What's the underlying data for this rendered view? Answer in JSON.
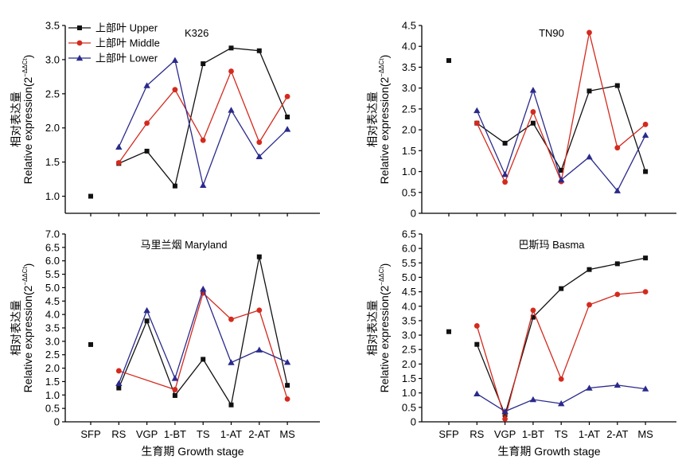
{
  "colors": {
    "upper": "#111111",
    "middle": "#d42a1e",
    "lower": "#2a2a8c",
    "axis": "#000000"
  },
  "legend": {
    "items": [
      {
        "key": "upper",
        "label": "上部叶 Upper",
        "marker": "square"
      },
      {
        "key": "middle",
        "label": "上部叶 Middle",
        "marker": "circle"
      },
      {
        "key": "lower",
        "label": "上部叶 Lower",
        "marker": "triangle"
      }
    ]
  },
  "chart_data": [
    {
      "type": "line",
      "title": "K326",
      "categories": [
        "SFP",
        "RS",
        "VGP",
        "1-BT",
        "TS",
        "1-AT",
        "2-AT",
        "MS"
      ],
      "ylabel_cn": "相对表达量",
      "ylabel_en": "Relative expression(2",
      "ylabel_sup": "−ΔΔCt",
      "ylabel_close": ")",
      "ylim": [
        0.75,
        3.5
      ],
      "yticks": [
        "1.0",
        "1.5",
        "2.0",
        "2.5",
        "3.0",
        "3.5"
      ],
      "show_x_labels": false,
      "series": [
        {
          "key": "upper",
          "values": [
            1.0,
            1.48,
            1.66,
            1.15,
            2.94,
            3.17,
            3.13,
            2.16
          ]
        },
        {
          "key": "middle",
          "values": [
            null,
            1.49,
            2.07,
            2.56,
            1.82,
            2.83,
            1.79,
            2.46
          ]
        },
        {
          "key": "lower",
          "values": [
            null,
            1.72,
            2.62,
            2.99,
            1.16,
            2.26,
            1.58,
            1.98
          ]
        }
      ]
    },
    {
      "type": "line",
      "title": "TN90",
      "categories": [
        "SFP",
        "RS",
        "VGP",
        "1-BT",
        "TS",
        "1-AT",
        "2-AT",
        "MS"
      ],
      "ylabel_cn": "相对表达量",
      "ylabel_en": "Relative expression(2",
      "ylabel_sup": "−ΔΔCt",
      "ylabel_close": ")",
      "ylim": [
        0,
        4.5
      ],
      "yticks": [
        "0",
        "0.5",
        "1.0",
        "1.5",
        "2.0",
        "2.5",
        "3.0",
        "3.5",
        "4.0",
        "4.5"
      ],
      "show_x_labels": false,
      "series": [
        {
          "key": "upper",
          "values": [
            3.66,
            2.16,
            1.68,
            2.16,
            1.03,
            2.93,
            3.06,
            1.0
          ]
        },
        {
          "key": "middle",
          "values": [
            null,
            2.16,
            0.75,
            2.43,
            0.76,
            4.33,
            1.57,
            2.13
          ]
        },
        {
          "key": "lower",
          "values": [
            null,
            2.46,
            0.93,
            2.95,
            0.8,
            1.35,
            0.54,
            1.87
          ]
        }
      ]
    },
    {
      "type": "line",
      "title": "马里兰烟 Maryland",
      "categories": [
        "SFP",
        "RS",
        "VGP",
        "1-BT",
        "TS",
        "1-AT",
        "2-AT",
        "MS"
      ],
      "ylabel_cn": "相对表达量",
      "ylabel_en": "Relative expression(2",
      "ylabel_sup": "−ΔΔCt",
      "ylabel_close": ")",
      "ylim": [
        0,
        7.0
      ],
      "yticks": [
        "0",
        "0.5",
        "1.0",
        "1.5",
        "2.0",
        "2.5",
        "3.0",
        "3.5",
        "4.0",
        "4.5",
        "5.0",
        "5.5",
        "6.0",
        "6.5",
        "7.0"
      ],
      "show_x_labels": true,
      "xlabel": "生育期 Growth stage",
      "series": [
        {
          "key": "upper",
          "values": [
            2.88,
            1.26,
            3.76,
            0.98,
            2.33,
            0.63,
            6.15,
            1.36
          ]
        },
        {
          "key": "middle",
          "values": [
            null,
            1.9,
            null,
            1.2,
            4.8,
            3.82,
            4.16,
            0.85
          ]
        },
        {
          "key": "lower",
          "values": [
            null,
            1.43,
            4.15,
            1.62,
            4.95,
            2.21,
            2.68,
            2.22
          ]
        }
      ]
    },
    {
      "type": "line",
      "title": "巴斯玛 Basma",
      "categories": [
        "SFP",
        "RS",
        "VGP",
        "1-BT",
        "TS",
        "1-AT",
        "2-AT",
        "MS"
      ],
      "ylabel_cn": "相对表达量",
      "ylabel_en": "Relative expression(2",
      "ylabel_sup": "−ΔΔCt",
      "ylabel_close": ")",
      "ylim": [
        0,
        6.5
      ],
      "yticks": [
        "0",
        "0.5",
        "1.0",
        "1.5",
        "2.0",
        "2.5",
        "3.0",
        "3.5",
        "4.0",
        "4.5",
        "5.0",
        "5.5",
        "6.0",
        "6.5"
      ],
      "show_x_labels": true,
      "xlabel": "生育期 Growth stage",
      "series": [
        {
          "key": "upper",
          "values": [
            3.12,
            2.68,
            0.25,
            3.62,
            4.61,
            5.27,
            5.47,
            5.67
          ]
        },
        {
          "key": "middle",
          "values": [
            null,
            3.32,
            0.1,
            3.86,
            1.48,
            4.05,
            4.41,
            4.5
          ]
        },
        {
          "key": "lower",
          "values": [
            null,
            0.97,
            0.36,
            0.77,
            0.63,
            1.17,
            1.27,
            1.14
          ]
        }
      ]
    }
  ]
}
